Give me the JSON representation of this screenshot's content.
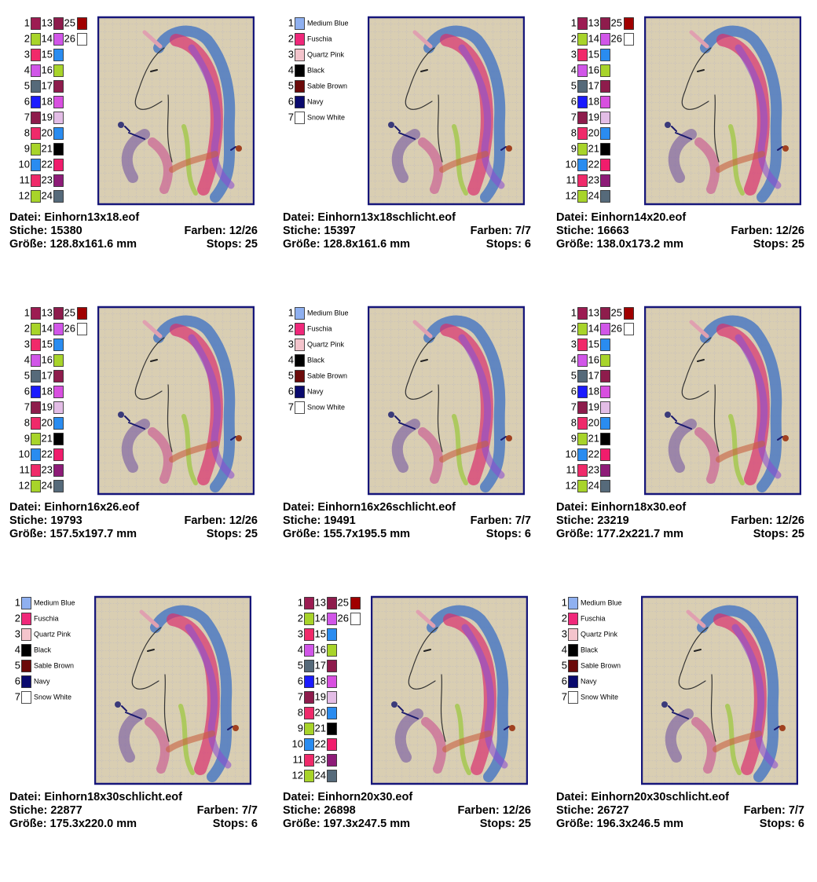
{
  "designs": [
    {
      "threads": [
        {
          "number": 1,
          "color": "#9c1c52"
        },
        {
          "number": 2,
          "color": "#a8d42a"
        },
        {
          "number": 3,
          "color": "#f02a6a"
        },
        {
          "number": 4,
          "color": "#d156e8"
        },
        {
          "number": 5,
          "color": "#566a7a"
        },
        {
          "number": 6,
          "color": "#1b1bff"
        },
        {
          "number": 7,
          "color": "#8e1c4c"
        },
        {
          "number": 8,
          "color": "#ef2a6a"
        },
        {
          "number": 9,
          "color": "#a8d42a"
        },
        {
          "number": 10,
          "color": "#2a8cf0"
        },
        {
          "number": 11,
          "color": "#ef2a6a"
        },
        {
          "number": 12,
          "color": "#a8d42a"
        },
        {
          "number": 13,
          "color": "#8e1c4c"
        },
        {
          "number": 14,
          "color": "#d156e8"
        },
        {
          "number": 15,
          "color": "#2a8cf0"
        },
        {
          "number": 16,
          "color": "#a8d42a"
        },
        {
          "number": 17,
          "color": "#8e1c4c"
        },
        {
          "number": 18,
          "color": "#d84fe0"
        },
        {
          "number": 19,
          "color": "#e3bde6"
        },
        {
          "number": 20,
          "color": "#2a8cf0"
        },
        {
          "number": 21,
          "color": "#000000"
        },
        {
          "number": 22,
          "color": "#f01d6c"
        },
        {
          "number": 23,
          "color": "#8e1c78"
        },
        {
          "number": 24,
          "color": "#566a7a"
        },
        {
          "number": 25,
          "color": "#a00000"
        },
        {
          "number": 26,
          "color": "#ffffff"
        }
      ],
      "file": "Datei: Einhorn13x18.eof",
      "stitches": "Stiche: 15380",
      "colors": "Farben: 12/26",
      "size": "Größe: 128.8x161.6 mm",
      "stops": "Stops: 25"
    },
    {
      "threads": [
        {
          "number": 1,
          "name": "Medium Blue",
          "color": "#8fb0f0"
        },
        {
          "number": 2,
          "name": "Fuschia",
          "color": "#f0287a"
        },
        {
          "number": 3,
          "name": "Quartz Pink",
          "color": "#f4c4cc"
        },
        {
          "number": 4,
          "name": "Black",
          "color": "#000000"
        },
        {
          "number": 5,
          "name": "Sable Brown",
          "color": "#6b0a0a"
        },
        {
          "number": 6,
          "name": "Navy",
          "color": "#0a0a6e"
        },
        {
          "number": 7,
          "name": "Snow White",
          "color": "#ffffff"
        }
      ],
      "file": "Datei: Einhorn13x18schlicht.eof",
      "stitches": "Stiche: 15397",
      "colors": "Farben: 7/7",
      "size": "Größe: 128.8x161.6 mm",
      "stops": "Stops: 6"
    },
    {
      "threads": [
        {
          "number": 1,
          "color": "#9c1c52"
        },
        {
          "number": 2,
          "color": "#a8d42a"
        },
        {
          "number": 3,
          "color": "#f02a6a"
        },
        {
          "number": 4,
          "color": "#d156e8"
        },
        {
          "number": 5,
          "color": "#566a7a"
        },
        {
          "number": 6,
          "color": "#1b1bff"
        },
        {
          "number": 7,
          "color": "#8e1c4c"
        },
        {
          "number": 8,
          "color": "#ef2a6a"
        },
        {
          "number": 9,
          "color": "#a8d42a"
        },
        {
          "number": 10,
          "color": "#2a8cf0"
        },
        {
          "number": 11,
          "color": "#ef2a6a"
        },
        {
          "number": 12,
          "color": "#a8d42a"
        },
        {
          "number": 13,
          "color": "#8e1c4c"
        },
        {
          "number": 14,
          "color": "#d156e8"
        },
        {
          "number": 15,
          "color": "#2a8cf0"
        },
        {
          "number": 16,
          "color": "#a8d42a"
        },
        {
          "number": 17,
          "color": "#8e1c4c"
        },
        {
          "number": 18,
          "color": "#d84fe0"
        },
        {
          "number": 19,
          "color": "#e3bde6"
        },
        {
          "number": 20,
          "color": "#2a8cf0"
        },
        {
          "number": 21,
          "color": "#000000"
        },
        {
          "number": 22,
          "color": "#f01d6c"
        },
        {
          "number": 23,
          "color": "#8e1c78"
        },
        {
          "number": 24,
          "color": "#566a7a"
        },
        {
          "number": 25,
          "color": "#a00000"
        },
        {
          "number": 26,
          "color": "#ffffff"
        }
      ],
      "file": "Datei: Einhorn14x20.eof",
      "stitches": "Stiche: 16663",
      "colors": "Farben: 12/26",
      "size": "Größe: 138.0x173.2 mm",
      "stops": "Stops: 25"
    },
    {
      "threads": [
        {
          "number": 1,
          "color": "#9c1c52"
        },
        {
          "number": 2,
          "color": "#a8d42a"
        },
        {
          "number": 3,
          "color": "#f02a6a"
        },
        {
          "number": 4,
          "color": "#d156e8"
        },
        {
          "number": 5,
          "color": "#566a7a"
        },
        {
          "number": 6,
          "color": "#1b1bff"
        },
        {
          "number": 7,
          "color": "#8e1c4c"
        },
        {
          "number": 8,
          "color": "#ef2a6a"
        },
        {
          "number": 9,
          "color": "#a8d42a"
        },
        {
          "number": 10,
          "color": "#2a8cf0"
        },
        {
          "number": 11,
          "color": "#ef2a6a"
        },
        {
          "number": 12,
          "color": "#a8d42a"
        },
        {
          "number": 13,
          "color": "#8e1c4c"
        },
        {
          "number": 14,
          "color": "#d156e8"
        },
        {
          "number": 15,
          "color": "#2a8cf0"
        },
        {
          "number": 16,
          "color": "#a8d42a"
        },
        {
          "number": 17,
          "color": "#8e1c4c"
        },
        {
          "number": 18,
          "color": "#d84fe0"
        },
        {
          "number": 19,
          "color": "#e3bde6"
        },
        {
          "number": 20,
          "color": "#2a8cf0"
        },
        {
          "number": 21,
          "color": "#000000"
        },
        {
          "number": 22,
          "color": "#f01d6c"
        },
        {
          "number": 23,
          "color": "#8e1c78"
        },
        {
          "number": 24,
          "color": "#566a7a"
        },
        {
          "number": 25,
          "color": "#a00000"
        },
        {
          "number": 26,
          "color": "#ffffff"
        }
      ],
      "file": "Datei: Einhorn16x26.eof",
      "stitches": "Stiche: 19793",
      "colors": "Farben: 12/26",
      "size": "Größe: 157.5x197.7 mm",
      "stops": "Stops: 25"
    },
    {
      "threads": [
        {
          "number": 1,
          "name": "Medium Blue",
          "color": "#8fb0f0"
        },
        {
          "number": 2,
          "name": "Fuschia",
          "color": "#f0287a"
        },
        {
          "number": 3,
          "name": "Quartz Pink",
          "color": "#f4c4cc"
        },
        {
          "number": 4,
          "name": "Black",
          "color": "#000000"
        },
        {
          "number": 5,
          "name": "Sable Brown",
          "color": "#6b0a0a"
        },
        {
          "number": 6,
          "name": "Navy",
          "color": "#0a0a6e"
        },
        {
          "number": 7,
          "name": "Snow White",
          "color": "#ffffff"
        }
      ],
      "file": "Datei: Einhorn16x26schlicht.eof",
      "stitches": "Stiche: 19491",
      "colors": "Farben: 7/7",
      "size": "Größe: 155.7x195.5 mm",
      "stops": "Stops: 6"
    },
    {
      "threads": [
        {
          "number": 1,
          "color": "#9c1c52"
        },
        {
          "number": 2,
          "color": "#a8d42a"
        },
        {
          "number": 3,
          "color": "#f02a6a"
        },
        {
          "number": 4,
          "color": "#d156e8"
        },
        {
          "number": 5,
          "color": "#566a7a"
        },
        {
          "number": 6,
          "color": "#1b1bff"
        },
        {
          "number": 7,
          "color": "#8e1c4c"
        },
        {
          "number": 8,
          "color": "#ef2a6a"
        },
        {
          "number": 9,
          "color": "#a8d42a"
        },
        {
          "number": 10,
          "color": "#2a8cf0"
        },
        {
          "number": 11,
          "color": "#ef2a6a"
        },
        {
          "number": 12,
          "color": "#a8d42a"
        },
        {
          "number": 13,
          "color": "#8e1c4c"
        },
        {
          "number": 14,
          "color": "#d156e8"
        },
        {
          "number": 15,
          "color": "#2a8cf0"
        },
        {
          "number": 16,
          "color": "#a8d42a"
        },
        {
          "number": 17,
          "color": "#8e1c4c"
        },
        {
          "number": 18,
          "color": "#d84fe0"
        },
        {
          "number": 19,
          "color": "#e3bde6"
        },
        {
          "number": 20,
          "color": "#2a8cf0"
        },
        {
          "number": 21,
          "color": "#000000"
        },
        {
          "number": 22,
          "color": "#f01d6c"
        },
        {
          "number": 23,
          "color": "#8e1c78"
        },
        {
          "number": 24,
          "color": "#566a7a"
        },
        {
          "number": 25,
          "color": "#a00000"
        },
        {
          "number": 26,
          "color": "#ffffff"
        }
      ],
      "file": "Datei: Einhorn18x30.eof",
      "stitches": "Stiche: 23219",
      "colors": "Farben: 12/26",
      "size": "Größe: 177.2x221.7 mm",
      "stops": "Stops: 25"
    },
    {
      "threads": [
        {
          "number": 1,
          "name": "Medium Blue",
          "color": "#8fb0f0"
        },
        {
          "number": 2,
          "name": "Fuschia",
          "color": "#f0287a"
        },
        {
          "number": 3,
          "name": "Quartz Pink",
          "color": "#f4c4cc"
        },
        {
          "number": 4,
          "name": "Black",
          "color": "#000000"
        },
        {
          "number": 5,
          "name": "Sable Brown",
          "color": "#6b0a0a"
        },
        {
          "number": 6,
          "name": "Navy",
          "color": "#0a0a6e"
        },
        {
          "number": 7,
          "name": "Snow White",
          "color": "#ffffff"
        }
      ],
      "file": "Datei: Einhorn18x30schlicht.eof",
      "stitches": "Stiche: 22877",
      "colors": "Farben: 7/7",
      "size": "Größe: 175.3x220.0 mm",
      "stops": "Stops: 6"
    },
    {
      "threads": [
        {
          "number": 1,
          "color": "#9c1c52"
        },
        {
          "number": 2,
          "color": "#a8d42a"
        },
        {
          "number": 3,
          "color": "#f02a6a"
        },
        {
          "number": 4,
          "color": "#d156e8"
        },
        {
          "number": 5,
          "color": "#566a7a"
        },
        {
          "number": 6,
          "color": "#1b1bff"
        },
        {
          "number": 7,
          "color": "#8e1c4c"
        },
        {
          "number": 8,
          "color": "#ef2a6a"
        },
        {
          "number": 9,
          "color": "#a8d42a"
        },
        {
          "number": 10,
          "color": "#2a8cf0"
        },
        {
          "number": 11,
          "color": "#ef2a6a"
        },
        {
          "number": 12,
          "color": "#a8d42a"
        },
        {
          "number": 13,
          "color": "#8e1c4c"
        },
        {
          "number": 14,
          "color": "#d156e8"
        },
        {
          "number": 15,
          "color": "#2a8cf0"
        },
        {
          "number": 16,
          "color": "#a8d42a"
        },
        {
          "number": 17,
          "color": "#8e1c4c"
        },
        {
          "number": 18,
          "color": "#d84fe0"
        },
        {
          "number": 19,
          "color": "#e3bde6"
        },
        {
          "number": 20,
          "color": "#2a8cf0"
        },
        {
          "number": 21,
          "color": "#000000"
        },
        {
          "number": 22,
          "color": "#f01d6c"
        },
        {
          "number": 23,
          "color": "#8e1c78"
        },
        {
          "number": 24,
          "color": "#566a7a"
        },
        {
          "number": 25,
          "color": "#a00000"
        },
        {
          "number": 26,
          "color": "#ffffff"
        }
      ],
      "file": "Datei: Einhorn20x30.eof",
      "stitches": "Stiche: 26898",
      "colors": "Farben: 12/26",
      "size": "Größe: 197.3x247.5 mm",
      "stops": "Stops: 25"
    },
    {
      "threads": [
        {
          "number": 1,
          "name": "Medium Blue",
          "color": "#8fb0f0"
        },
        {
          "number": 2,
          "name": "Fuschia",
          "color": "#f0287a"
        },
        {
          "number": 3,
          "name": "Quartz Pink",
          "color": "#f4c4cc"
        },
        {
          "number": 4,
          "name": "Black",
          "color": "#000000"
        },
        {
          "number": 5,
          "name": "Sable Brown",
          "color": "#6b0a0a"
        },
        {
          "number": 6,
          "name": "Navy",
          "color": "#0a0a6e"
        },
        {
          "number": 7,
          "name": "Snow White",
          "color": "#ffffff"
        }
      ],
      "file": "Datei: Einhorn20x30schlicht.eof",
      "stitches": "Stiche: 26727",
      "colors": "Farben: 7/7",
      "size": "Größe: 196.3x246.5 mm",
      "stops": "Stops: 6"
    }
  ]
}
